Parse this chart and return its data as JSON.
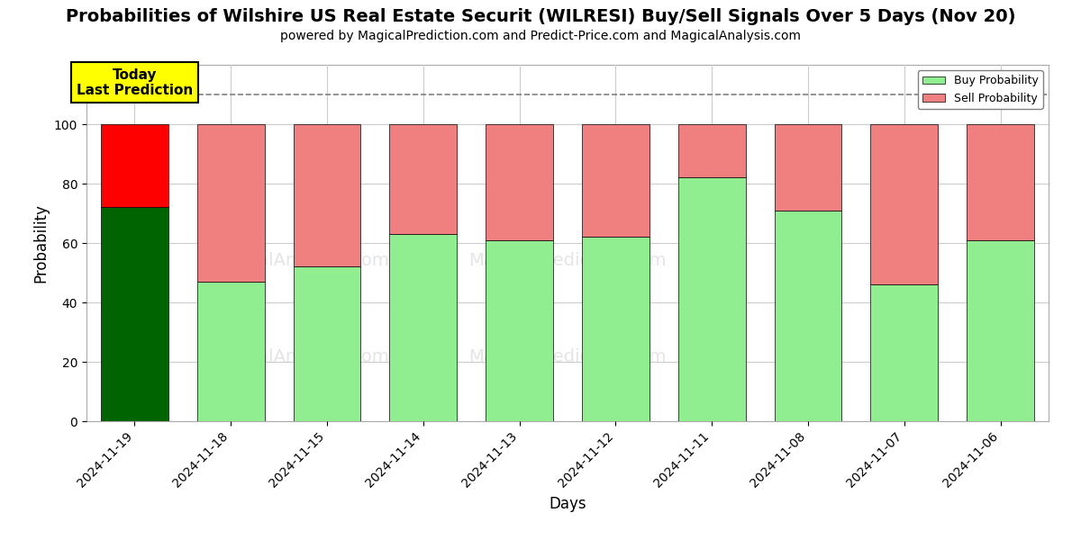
{
  "title": "Probabilities of Wilshire US Real Estate Securit (WILRESI) Buy/Sell Signals Over 5 Days (Nov 20)",
  "subtitle": "powered by MagicalPrediction.com and Predict-Price.com and MagicalAnalysis.com",
  "xlabel": "Days",
  "ylabel": "Probability",
  "categories": [
    "2024-11-19",
    "2024-11-18",
    "2024-11-15",
    "2024-11-14",
    "2024-11-13",
    "2024-11-12",
    "2024-11-11",
    "2024-11-08",
    "2024-11-07",
    "2024-11-06"
  ],
  "buy_values": [
    72,
    47,
    52,
    63,
    61,
    62,
    82,
    71,
    46,
    61
  ],
  "sell_values": [
    28,
    53,
    48,
    37,
    39,
    38,
    18,
    29,
    54,
    39
  ],
  "buy_colors_today": "#006400",
  "sell_colors_today": "#FF0000",
  "buy_color": "#90EE90",
  "sell_color": "#F08080",
  "legend_buy_color": "#90EE90",
  "legend_sell_color": "#F08080",
  "ylim_max": 120,
  "yticks": [
    0,
    20,
    40,
    60,
    80,
    100
  ],
  "dashed_line_y": 110,
  "today_box_text": "Today\nLast Prediction",
  "background_color": "#ffffff",
  "grid_color": "#cccccc",
  "title_fontsize": 14,
  "subtitle_fontsize": 10,
  "bar_width": 0.7
}
